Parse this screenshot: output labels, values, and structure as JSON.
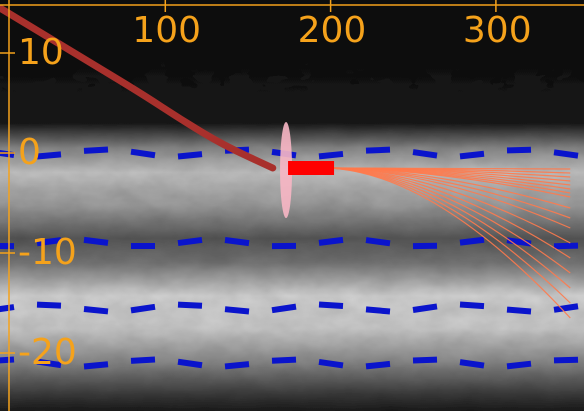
{
  "colors": {
    "background": "#050505",
    "axis": "#f5a21b",
    "lane_lines": "#0a14cc",
    "ego_trajectory": "#a8302c",
    "ego_vehicle": "#ff0000",
    "uncertainty_ellipse": "#f7b6c4",
    "predictions": "#ff7a4d"
  },
  "axes": {
    "x_ticks": [
      {
        "value": 100,
        "label": "100"
      },
      {
        "value": 200,
        "label": "200"
      },
      {
        "value": 300,
        "label": "300"
      }
    ],
    "y_ticks": [
      {
        "value": 10,
        "label": "10"
      },
      {
        "value": 0,
        "label": "0"
      },
      {
        "value": -10,
        "label": "-10"
      },
      {
        "value": -20,
        "label": "-20"
      }
    ],
    "x_range": [
      0,
      350
    ],
    "y_range": [
      13,
      -26
    ]
  },
  "road": {
    "lane_line_y": [
      0,
      -9,
      -15.5,
      -21
    ],
    "texture": "gray-drivable-area"
  },
  "ego": {
    "position": {
      "x": 167,
      "y": -1.5
    },
    "history": [
      {
        "x": 0,
        "y": 14.5
      },
      {
        "x": 50,
        "y": 9.5
      },
      {
        "x": 85,
        "y": 6.0
      },
      {
        "x": 110,
        "y": 3.3
      },
      {
        "x": 135,
        "y": 0.8
      },
      {
        "x": 165,
        "y": -1.5
      }
    ]
  },
  "predictions": {
    "start": {
      "x": 200,
      "y": -1.5
    },
    "endpoints": [
      {
        "x": 345,
        "y": -1.6
      },
      {
        "x": 345,
        "y": -2.0
      },
      {
        "x": 345,
        "y": -2.4
      },
      {
        "x": 345,
        "y": -2.8
      },
      {
        "x": 345,
        "y": -3.2
      },
      {
        "x": 345,
        "y": -3.6
      },
      {
        "x": 345,
        "y": -4.0
      },
      {
        "x": 345,
        "y": -4.4
      },
      {
        "x": 345,
        "y": -5.5
      },
      {
        "x": 345,
        "y": -6.5
      },
      {
        "x": 345,
        "y": -7.5
      },
      {
        "x": 345,
        "y": -9.0
      },
      {
        "x": 345,
        "y": -10.5
      },
      {
        "x": 345,
        "y": -12.0
      },
      {
        "x": 345,
        "y": -13.5
      },
      {
        "x": 345,
        "y": -15.0
      },
      {
        "x": 345,
        "y": -16.5
      }
    ]
  }
}
